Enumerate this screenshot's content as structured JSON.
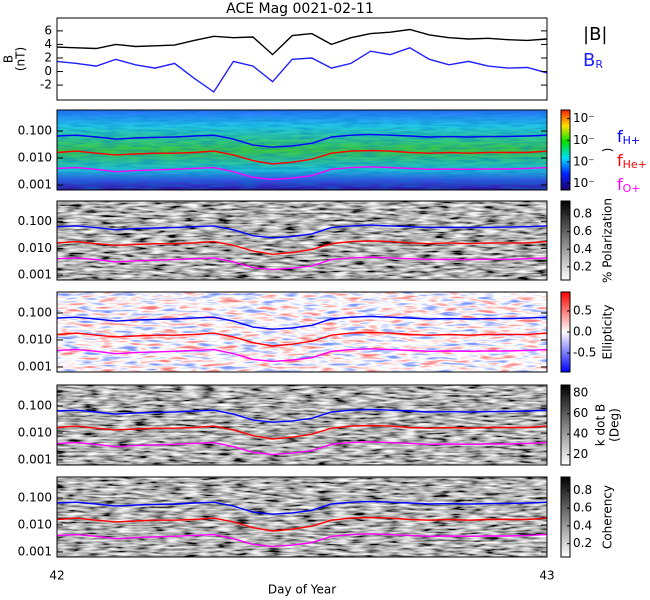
{
  "title": "ACE Mag 0021-02-11",
  "xlim": [
    42,
    43
  ],
  "xticks": [
    42,
    43
  ],
  "xlabel": "Day of Year",
  "frequencies": {
    "x": [
      42.0,
      42.04,
      42.08,
      42.12,
      42.16,
      42.2,
      42.24,
      42.28,
      42.32,
      42.36,
      42.4,
      42.44,
      42.48,
      42.52,
      42.56,
      42.6,
      42.64,
      42.68,
      42.72,
      42.76,
      42.8,
      42.84,
      42.88,
      42.92,
      42.96,
      43.0
    ],
    "series": [
      {
        "name": "fH+",
        "color": "#0000ff",
        "values": [
          0.065,
          0.07,
          0.06,
          0.05,
          0.055,
          0.058,
          0.06,
          0.065,
          0.07,
          0.05,
          0.03,
          0.025,
          0.028,
          0.035,
          0.06,
          0.07,
          0.075,
          0.07,
          0.065,
          0.06,
          0.062,
          0.06,
          0.062,
          0.063,
          0.065,
          0.07
        ]
      },
      {
        "name": "fHe+",
        "color": "#ff0000",
        "values": [
          0.016,
          0.018,
          0.015,
          0.013,
          0.014,
          0.015,
          0.015,
          0.016,
          0.018,
          0.013,
          0.008,
          0.006,
          0.007,
          0.009,
          0.015,
          0.018,
          0.019,
          0.018,
          0.016,
          0.015,
          0.016,
          0.015,
          0.016,
          0.016,
          0.016,
          0.018
        ]
      },
      {
        "name": "fO+",
        "color": "#ff00ff",
        "values": [
          0.0041,
          0.0044,
          0.0038,
          0.0031,
          0.0034,
          0.0036,
          0.0038,
          0.0041,
          0.0044,
          0.0031,
          0.0019,
          0.0016,
          0.0018,
          0.0022,
          0.0038,
          0.0044,
          0.0047,
          0.0044,
          0.0041,
          0.0038,
          0.0039,
          0.0038,
          0.0039,
          0.0039,
          0.0041,
          0.0044
        ]
      }
    ]
  },
  "chart_data": [
    {
      "type": "line",
      "ylabel": [
        "B",
        "(nT)"
      ],
      "x": [
        42.0,
        42.04,
        42.08,
        42.12,
        42.16,
        42.2,
        42.24,
        42.28,
        42.32,
        42.36,
        42.4,
        42.44,
        42.48,
        42.52,
        42.56,
        42.6,
        42.64,
        42.68,
        42.72,
        42.76,
        42.8,
        42.84,
        42.88,
        42.92,
        42.96,
        43.0
      ],
      "ylim": [
        -4.2,
        7.9
      ],
      "yticks": [
        -2,
        0,
        2,
        4,
        6
      ],
      "series": [
        {
          "name": "|B|",
          "color": "#000000",
          "values": [
            3.6,
            3.5,
            3.4,
            4.0,
            3.7,
            3.8,
            3.9,
            4.6,
            5.2,
            5.0,
            5.1,
            2.5,
            5.3,
            5.6,
            4.0,
            5.0,
            5.6,
            5.8,
            6.2,
            5.4,
            5.0,
            4.8,
            4.9,
            4.7,
            4.6,
            4.8
          ]
        },
        {
          "name": "BR",
          "color": "#2020ff",
          "values": [
            1.5,
            1.2,
            0.8,
            1.8,
            1.0,
            0.5,
            1.2,
            -1.0,
            -3.0,
            1.5,
            0.8,
            -1.5,
            1.8,
            2.0,
            0.5,
            1.2,
            3.0,
            2.5,
            3.5,
            1.8,
            1.0,
            1.5,
            0.8,
            0.5,
            0.6,
            -0.2
          ]
        }
      ]
    },
    {
      "type": "spectrogram",
      "colormap": "rainbow",
      "frequency_legend": true,
      "ylim": [
        0.00065,
        0.6
      ],
      "yticks": [
        {
          "value": 0.001,
          "label": "0.001"
        },
        {
          "value": 0.01,
          "label": "0.010"
        },
        {
          "value": 0.1,
          "label": "0.100"
        }
      ],
      "colorbar_label": [
        ")"
      ],
      "clim": [
        -4.3,
        -0.6
      ],
      "colorbar_ticks": [
        {
          "value": -1,
          "label": "10⁻"
        },
        {
          "value": -2,
          "label": "10⁻"
        },
        {
          "value": -3,
          "label": "10⁻"
        },
        {
          "value": -4,
          "label": "10⁻"
        }
      ]
    },
    {
      "type": "spectrogram",
      "colormap": "gray",
      "ylim": [
        0.00065,
        0.6
      ],
      "yticks": [
        {
          "value": 0.001,
          "label": "0.001"
        },
        {
          "value": 0.01,
          "label": "0.010"
        },
        {
          "value": 0.1,
          "label": "0.100"
        }
      ],
      "colorbar_label": [
        "% Polarization"
      ],
      "clim": [
        0.05,
        0.95
      ],
      "colorbar_ticks": [
        0.2,
        0.4,
        0.6,
        0.8
      ]
    },
    {
      "type": "spectrogram",
      "colormap": "bwr",
      "ylim": [
        0.00065,
        0.6
      ],
      "yticks": [
        {
          "value": 0.001,
          "label": "0.001"
        },
        {
          "value": 0.01,
          "label": "0.010"
        },
        {
          "value": 0.1,
          "label": "0.100"
        }
      ],
      "colorbar_label": [
        "Ellipticity"
      ],
      "clim": [
        -0.95,
        0.95
      ],
      "colorbar_ticks": [
        -0.5,
        {
          "value": 0,
          "label": "0.0"
        },
        0.5
      ]
    },
    {
      "type": "spectrogram",
      "colormap": "gray",
      "ylim": [
        0.00065,
        0.6
      ],
      "yticks": [
        {
          "value": 0.001,
          "label": "0.001"
        },
        {
          "value": 0.01,
          "label": "0.010"
        },
        {
          "value": 0.1,
          "label": "0.100"
        }
      ],
      "colorbar_label": [
        "k dot B",
        "(Deg)"
      ],
      "clim": [
        10,
        88
      ],
      "colorbar_ticks": [
        20,
        40,
        60,
        80
      ]
    },
    {
      "type": "spectrogram",
      "colormap": "gray",
      "ylim": [
        0.00065,
        0.6
      ],
      "yticks": [
        {
          "value": 0.001,
          "label": "0.001"
        },
        {
          "value": 0.01,
          "label": "0.010"
        },
        {
          "value": 0.1,
          "label": "0.100"
        }
      ],
      "colorbar_label": [
        "Coherency"
      ],
      "clim": [
        0.05,
        0.95
      ],
      "colorbar_ticks": [
        0.2,
        0.4,
        0.6,
        0.8
      ]
    }
  ]
}
